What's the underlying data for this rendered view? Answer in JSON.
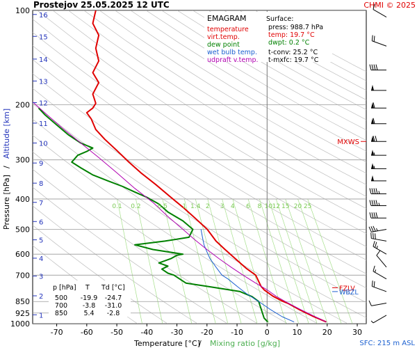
{
  "header": {
    "station": "Prostejov",
    "datetime": "25.05.2025 12 UTC",
    "credit": "CHMI © 2025"
  },
  "chart_data": {
    "type": "line",
    "title": "EMAGRAM",
    "xlabel": "Temperature [°C]",
    "xlabel_sep": "/",
    "xlabel2": "Mixing ratio [g/kg]",
    "ylabel": "Pressure [hPa]",
    "ylabel_sep": "/",
    "ylabel2": "Altitude [km]",
    "x_ticks": [
      -70,
      -60,
      -50,
      -40,
      -30,
      -20,
      -10,
      0,
      10,
      20,
      30
    ],
    "xlim": [
      -78,
      33
    ],
    "p_ticks": [
      100,
      200,
      300,
      400,
      500,
      600,
      700,
      850,
      925,
      1000
    ],
    "p_range": [
      100,
      1000
    ],
    "altitude_ticks": [
      {
        "km": "1",
        "p": 937
      },
      {
        "km": "2",
        "p": 815
      },
      {
        "km": "3",
        "p": 705
      },
      {
        "km": "4",
        "p": 618
      },
      {
        "km": "5",
        "p": 540
      },
      {
        "km": "6",
        "p": 472
      },
      {
        "km": "7",
        "p": 410
      },
      {
        "km": "8",
        "p": 356
      },
      {
        "km": "9",
        "p": 307
      },
      {
        "km": "10",
        "p": 265
      },
      {
        "km": "11",
        "p": 229
      },
      {
        "km": "12",
        "p": 197
      },
      {
        "km": "13",
        "p": 168
      },
      {
        "km": "14",
        "p": 143
      },
      {
        "km": "15",
        "p": 121
      },
      {
        "km": "16",
        "p": 103
      }
    ],
    "mixing_ratio_labels": [
      "0.1",
      "0.2",
      "0.5",
      "1",
      "1.4",
      "2",
      "3",
      "4",
      "6",
      "8",
      "10",
      "12",
      "15",
      "20",
      "25"
    ],
    "legend": [
      {
        "label": "temperature",
        "color": "#e00000"
      },
      {
        "label": "virt.temp.",
        "color": "#e00000"
      },
      {
        "label": "dew point",
        "color": "#008000"
      },
      {
        "label": "wet bulb temp.",
        "color": "#1a5fd0"
      },
      {
        "label": "udpraft v.temp.",
        "color": "#b000b0"
      }
    ],
    "surface": {
      "heading": "Surface:",
      "press": "press: 988.7 hPa",
      "temp": "temp: 19.7 °C",
      "dwpt": "dwpt: 0.2 °C",
      "tconv": "t-conv: 25.2 °C",
      "tmxfc": "t-mxfc: 19.7 °C"
    },
    "levels_table": {
      "headers": [
        "p [hPa]",
        "T",
        "Td [°C]"
      ],
      "rows": [
        [
          "500",
          "-19.9",
          "-24.7"
        ],
        [
          "700",
          "-3.8",
          "-31.0"
        ],
        [
          "850",
          "5.4",
          "-2.8"
        ]
      ]
    },
    "markers": [
      {
        "label": "MXWS",
        "p": 262,
        "color": "#e00000"
      },
      {
        "label": "FZLV",
        "p": 768,
        "color": "#e00000"
      },
      {
        "label": "WBZL",
        "p": 790,
        "color": "#1a5fd0"
      }
    ],
    "footer_sfc": "SFC: 215 m ASL",
    "series": [
      {
        "name": "temperature",
        "color": "#e00000",
        "points": [
          [
            19.7,
            988
          ],
          [
            15,
            945
          ],
          [
            11,
            905
          ],
          [
            7,
            862
          ],
          [
            5.4,
            850
          ],
          [
            2,
            818
          ],
          [
            -1,
            780
          ],
          [
            -2,
            760
          ],
          [
            -3.8,
            700
          ],
          [
            -7,
            665
          ],
          [
            -11,
            615
          ],
          [
            -14,
            580
          ],
          [
            -17,
            545
          ],
          [
            -19.9,
            500
          ],
          [
            -24,
            460
          ],
          [
            -28,
            425
          ],
          [
            -32,
            395
          ],
          [
            -37,
            360
          ],
          [
            -42,
            330
          ],
          [
            -46,
            305
          ],
          [
            -50,
            280
          ],
          [
            -54,
            258
          ],
          [
            -57,
            240
          ],
          [
            -58.5,
            222
          ],
          [
            -60,
            212
          ],
          [
            -58,
            205
          ],
          [
            -57,
            198
          ],
          [
            -58,
            185
          ],
          [
            -56,
            170
          ],
          [
            -58,
            158
          ],
          [
            -56,
            145
          ],
          [
            -57,
            132
          ],
          [
            -56,
            120
          ],
          [
            -58,
            110
          ],
          [
            -57,
            100
          ]
        ]
      },
      {
        "name": "dew point",
        "color": "#008000",
        "points": [
          [
            0.2,
            988
          ],
          [
            -1,
            960
          ],
          [
            -2.8,
            850
          ],
          [
            -5,
            820
          ],
          [
            -9,
            790
          ],
          [
            -20,
            760
          ],
          [
            -27,
            742
          ],
          [
            -31,
            700
          ],
          [
            -33,
            690
          ],
          [
            -35,
            670
          ],
          [
            -33,
            655
          ],
          [
            -36,
            640
          ],
          [
            -32,
            620
          ],
          [
            -30,
            605
          ],
          [
            -28,
            600
          ],
          [
            -38,
            580
          ],
          [
            -44,
            560
          ],
          [
            -34,
            545
          ],
          [
            -26,
            530
          ],
          [
            -24.7,
            500
          ],
          [
            -28,
            470
          ],
          [
            -33,
            440
          ],
          [
            -36,
            415
          ],
          [
            -40,
            395
          ],
          [
            -44,
            380
          ],
          [
            -48,
            365
          ],
          [
            -53,
            350
          ],
          [
            -58,
            335
          ],
          [
            -62,
            318
          ],
          [
            -65,
            305
          ],
          [
            -63,
            290
          ],
          [
            -60,
            282
          ],
          [
            -58,
            275
          ],
          [
            -62,
            265
          ],
          [
            -66,
            250
          ],
          [
            -70,
            232
          ],
          [
            -74,
            215
          ],
          [
            -76,
            205
          ]
        ]
      },
      {
        "name": "wet bulb temp.",
        "color": "#1a5fd0",
        "points": [
          [
            9,
            988
          ],
          [
            5,
            950
          ],
          [
            1,
            900
          ],
          [
            -2,
            860
          ],
          [
            -7,
            800
          ],
          [
            -10,
            760
          ],
          [
            -13,
            720
          ],
          [
            -15,
            700
          ],
          [
            -17,
            660
          ],
          [
            -19,
            620
          ],
          [
            -20,
            590
          ],
          [
            -21,
            560
          ],
          [
            -21.5,
            530
          ],
          [
            -22,
            500
          ]
        ]
      },
      {
        "name": "udpraft v.temp.",
        "color": "#b000b0",
        "points": [
          [
            19.7,
            988
          ],
          [
            15,
            940
          ],
          [
            11,
            900
          ],
          [
            7,
            860
          ],
          [
            3,
            818
          ],
          [
            0,
            780
          ],
          [
            -4,
            740
          ],
          [
            -8,
            700
          ],
          [
            -12,
            660
          ],
          [
            -16,
            620
          ],
          [
            -20,
            580
          ],
          [
            -24,
            540
          ],
          [
            -28,
            500
          ],
          [
            -33,
            455
          ],
          [
            -38,
            410
          ],
          [
            -44,
            370
          ],
          [
            -50,
            330
          ],
          [
            -56,
            295
          ],
          [
            -62,
            265
          ],
          [
            -68,
            238
          ],
          [
            -74,
            212
          ],
          [
            -78,
            196
          ]
        ]
      }
    ],
    "wind_barbs": [
      {
        "p": 105,
        "dir": 300,
        "spd": 10
      },
      {
        "p": 130,
        "dir": 290,
        "spd": 20
      },
      {
        "p": 155,
        "dir": 270,
        "spd": 40
      },
      {
        "p": 180,
        "dir": 270,
        "spd": 50
      },
      {
        "p": 205,
        "dir": 270,
        "spd": 60
      },
      {
        "p": 230,
        "dir": 270,
        "spd": 60
      },
      {
        "p": 262,
        "dir": 270,
        "spd": 70
      },
      {
        "p": 290,
        "dir": 270,
        "spd": 55
      },
      {
        "p": 320,
        "dir": 270,
        "spd": 55
      },
      {
        "p": 350,
        "dir": 270,
        "spd": 50
      },
      {
        "p": 385,
        "dir": 270,
        "spd": 45
      },
      {
        "p": 420,
        "dir": 270,
        "spd": 45
      },
      {
        "p": 460,
        "dir": 270,
        "spd": 40
      },
      {
        "p": 500,
        "dir": 260,
        "spd": 35
      },
      {
        "p": 545,
        "dir": 280,
        "spd": 30
      },
      {
        "p": 600,
        "dir": 300,
        "spd": 25
      },
      {
        "p": 660,
        "dir": 320,
        "spd": 10
      },
      {
        "p": 720,
        "dir": 300,
        "spd": 15
      },
      {
        "p": 790,
        "dir": 290,
        "spd": 20
      },
      {
        "p": 860,
        "dir": 260,
        "spd": 10
      },
      {
        "p": 940,
        "dir": 240,
        "spd": 5
      }
    ]
  }
}
